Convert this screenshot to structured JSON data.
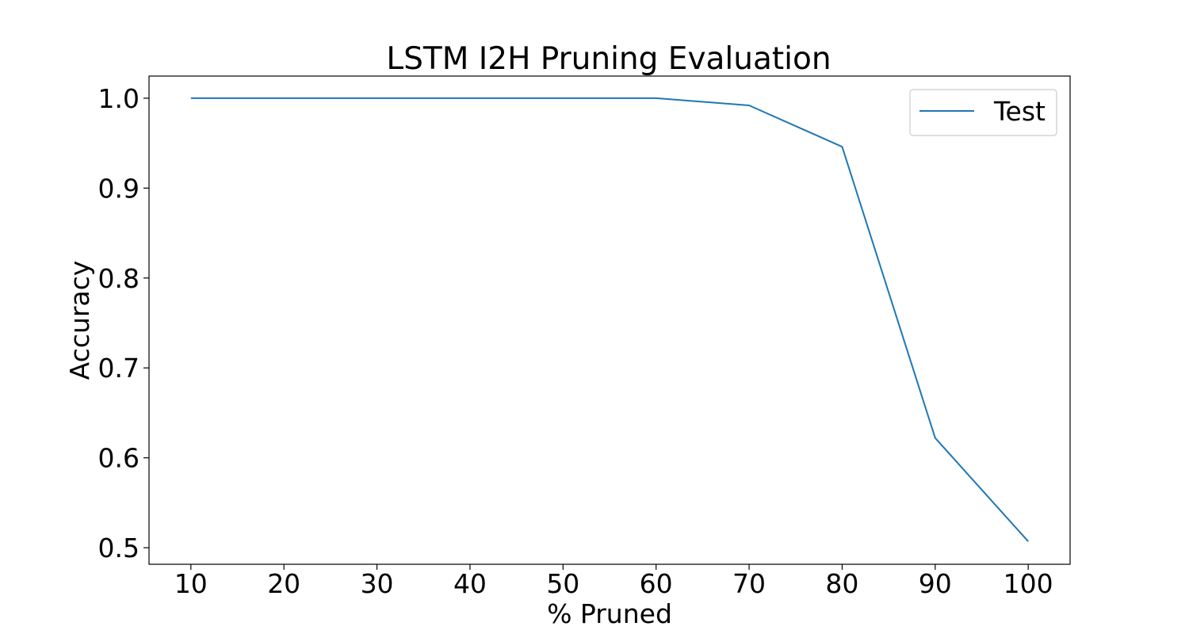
{
  "chart_data": {
    "type": "line",
    "title": "LSTM I2H Pruning Evaluation",
    "xlabel": "% Pruned",
    "ylabel": "Accuracy",
    "x": [
      10,
      20,
      30,
      40,
      50,
      60,
      70,
      80,
      90,
      100
    ],
    "series": [
      {
        "name": "Test",
        "color": "#1f77b4",
        "values": [
          1.0,
          1.0,
          1.0,
          1.0,
          1.0,
          1.0,
          0.992,
          0.946,
          0.622,
          0.507
        ]
      }
    ],
    "xlim": [
      5.5,
      104.5
    ],
    "ylim": [
      0.4816,
      1.0246
    ],
    "xticks": [
      10,
      20,
      30,
      40,
      50,
      60,
      70,
      80,
      90,
      100
    ],
    "xtick_labels": [
      "10",
      "20",
      "30",
      "40",
      "50",
      "60",
      "70",
      "80",
      "90",
      "100"
    ],
    "yticks": [
      0.5,
      0.6,
      0.7,
      0.8,
      0.9,
      1.0
    ],
    "ytick_labels": [
      "0.5",
      "0.6",
      "0.7",
      "0.8",
      "0.9",
      "1.0"
    ],
    "grid": false,
    "legend_position": "top-right"
  }
}
